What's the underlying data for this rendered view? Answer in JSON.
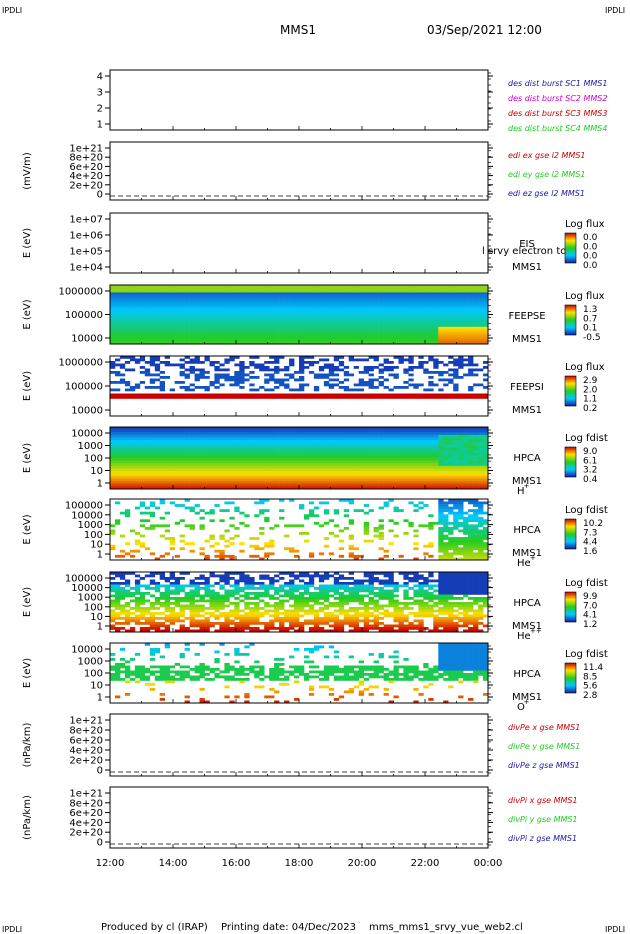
{
  "header": {
    "mission": "MMS1",
    "datetime": "03/Sep/2021 12:00",
    "corner_label": "IPDLI"
  },
  "footer": {
    "producer": "Produced by cl (IRAP)",
    "printing": "Printing date: 04/Dec/2023",
    "script": "mms_mms1_srvy_vue_web2.cl"
  },
  "colors": {
    "blue": "#1a1aa6",
    "magenta": "#d000d0",
    "red": "#cc0000",
    "green": "#22cc22"
  },
  "chart_data": [
    {
      "type": "line",
      "panel": "des-dist-burst",
      "y_ticks": [
        "4",
        "3",
        "2",
        "1"
      ],
      "legend": [
        {
          "text": "des dist burst SC1 MMS1",
          "color": "#1a1aa6"
        },
        {
          "text": "des dist burst SC2 MMS2",
          "color": "#d000d0"
        },
        {
          "text": "des dist burst SC3 MMS3",
          "color": "#cc0000"
        },
        {
          "text": "des dist burst SC4 MMS4",
          "color": "#22cc22"
        }
      ]
    },
    {
      "type": "line",
      "panel": "edi",
      "ylabel": "(mV/m)",
      "y_ticks": [
        "1e+21",
        "8e+20",
        "6e+20",
        "4e+20",
        "2e+20",
        "0"
      ],
      "legend": [
        {
          "text": "edi ex gse l2 MMS1",
          "color": "#cc0000"
        },
        {
          "text": "edi ey gse l2 MMS1",
          "color": "#22cc22"
        },
        {
          "text": "edi ez gse l2 MMS1",
          "color": "#1a1aa6"
        }
      ]
    },
    {
      "type": "heatmap",
      "panel": "eis",
      "ylabel": "E (eV)",
      "y_ticks": [
        "1e+07",
        "1e+06",
        "1e+05",
        "1e+04"
      ],
      "instrument": [
        "EIS",
        "MMS1"
      ],
      "overlay_text": "l srvy electron to",
      "colorbar_title": "Log flux",
      "colorbar_ticks": [
        "0.0",
        "0.0",
        "0.0",
        "0.0"
      ]
    },
    {
      "type": "heatmap",
      "panel": "feepse",
      "ylabel": "E (eV)",
      "y_ticks": [
        "1000000",
        "100000",
        "10000"
      ],
      "instrument": [
        "FEEPSE",
        "MMS1"
      ],
      "colorbar_title": "Log flux",
      "colorbar_ticks": [
        "1.3",
        "0.7",
        "0.1",
        "-0.5"
      ]
    },
    {
      "type": "heatmap",
      "panel": "feepsi",
      "ylabel": "E (eV)",
      "y_ticks": [
        "1000000",
        "100000",
        "10000"
      ],
      "instrument": [
        "FEEPSI",
        "MMS1"
      ],
      "colorbar_title": "Log flux",
      "colorbar_ticks": [
        "2.9",
        "2.0",
        "1.1",
        "0.2"
      ]
    },
    {
      "type": "heatmap",
      "panel": "hpca-h",
      "ylabel": "E (eV)",
      "y_ticks": [
        "10000",
        "1000",
        "100",
        "10",
        "1"
      ],
      "instrument": [
        "HPCA",
        "MMS1"
      ],
      "species": "H",
      "species_charge": "+",
      "colorbar_title": "Log fdist",
      "colorbar_ticks": [
        "9.0",
        "6.1",
        "3.2",
        "0.4"
      ]
    },
    {
      "type": "heatmap",
      "panel": "hpca-he",
      "ylabel": "E (eV)",
      "y_ticks": [
        "100000",
        "10000",
        "1000",
        "100",
        "10",
        "1"
      ],
      "instrument": [
        "HPCA",
        "MMS1"
      ],
      "species": "He",
      "species_charge": "+",
      "colorbar_title": "Log fdist",
      "colorbar_ticks": [
        "10.2",
        "7.3",
        "4.4",
        "1.6"
      ]
    },
    {
      "type": "heatmap",
      "panel": "hpca-hepp",
      "ylabel": "E (eV)",
      "y_ticks": [
        "100000",
        "10000",
        "1000",
        "100",
        "10",
        "1"
      ],
      "instrument": [
        "HPCA",
        "MMS1"
      ],
      "species": "He",
      "species_charge": "++",
      "colorbar_title": "Log fdist",
      "colorbar_ticks": [
        "9.9",
        "7.0",
        "4.1",
        "1.2"
      ]
    },
    {
      "type": "heatmap",
      "panel": "hpca-o",
      "ylabel": "E (eV)",
      "y_ticks": [
        "10000",
        "1000",
        "100",
        "10",
        "1"
      ],
      "instrument": [
        "HPCA",
        "MMS1"
      ],
      "species": "O",
      "species_charge": "+",
      "colorbar_title": "Log fdist",
      "colorbar_ticks": [
        "11.4",
        "8.5",
        "5.6",
        "2.8"
      ]
    },
    {
      "type": "line",
      "panel": "divpe",
      "ylabel": "(nPa/km)",
      "y_ticks": [
        "1e+21",
        "8e+20",
        "6e+20",
        "4e+20",
        "2e+20",
        "0"
      ],
      "legend": [
        {
          "text": "divPe x gse MMS1",
          "color": "#cc0000"
        },
        {
          "text": "divPe y gse MMS1",
          "color": "#22cc22"
        },
        {
          "text": "divPe z gse MMS1",
          "color": "#1a1aa6"
        }
      ]
    },
    {
      "type": "line",
      "panel": "divpi",
      "ylabel": "(nPa/km)",
      "y_ticks": [
        "1e+21",
        "8e+20",
        "6e+20",
        "4e+20",
        "2e+20",
        "0"
      ],
      "legend": [
        {
          "text": "divPi x gse MMS1",
          "color": "#cc0000"
        },
        {
          "text": "divPi y gse MMS1",
          "color": "#22cc22"
        },
        {
          "text": "divPi z gse MMS1",
          "color": "#1a1aa6"
        }
      ]
    }
  ],
  "x_axis": {
    "ticks": [
      "12:00",
      "14:00",
      "16:00",
      "18:00",
      "20:00",
      "22:00",
      "00:00"
    ]
  }
}
